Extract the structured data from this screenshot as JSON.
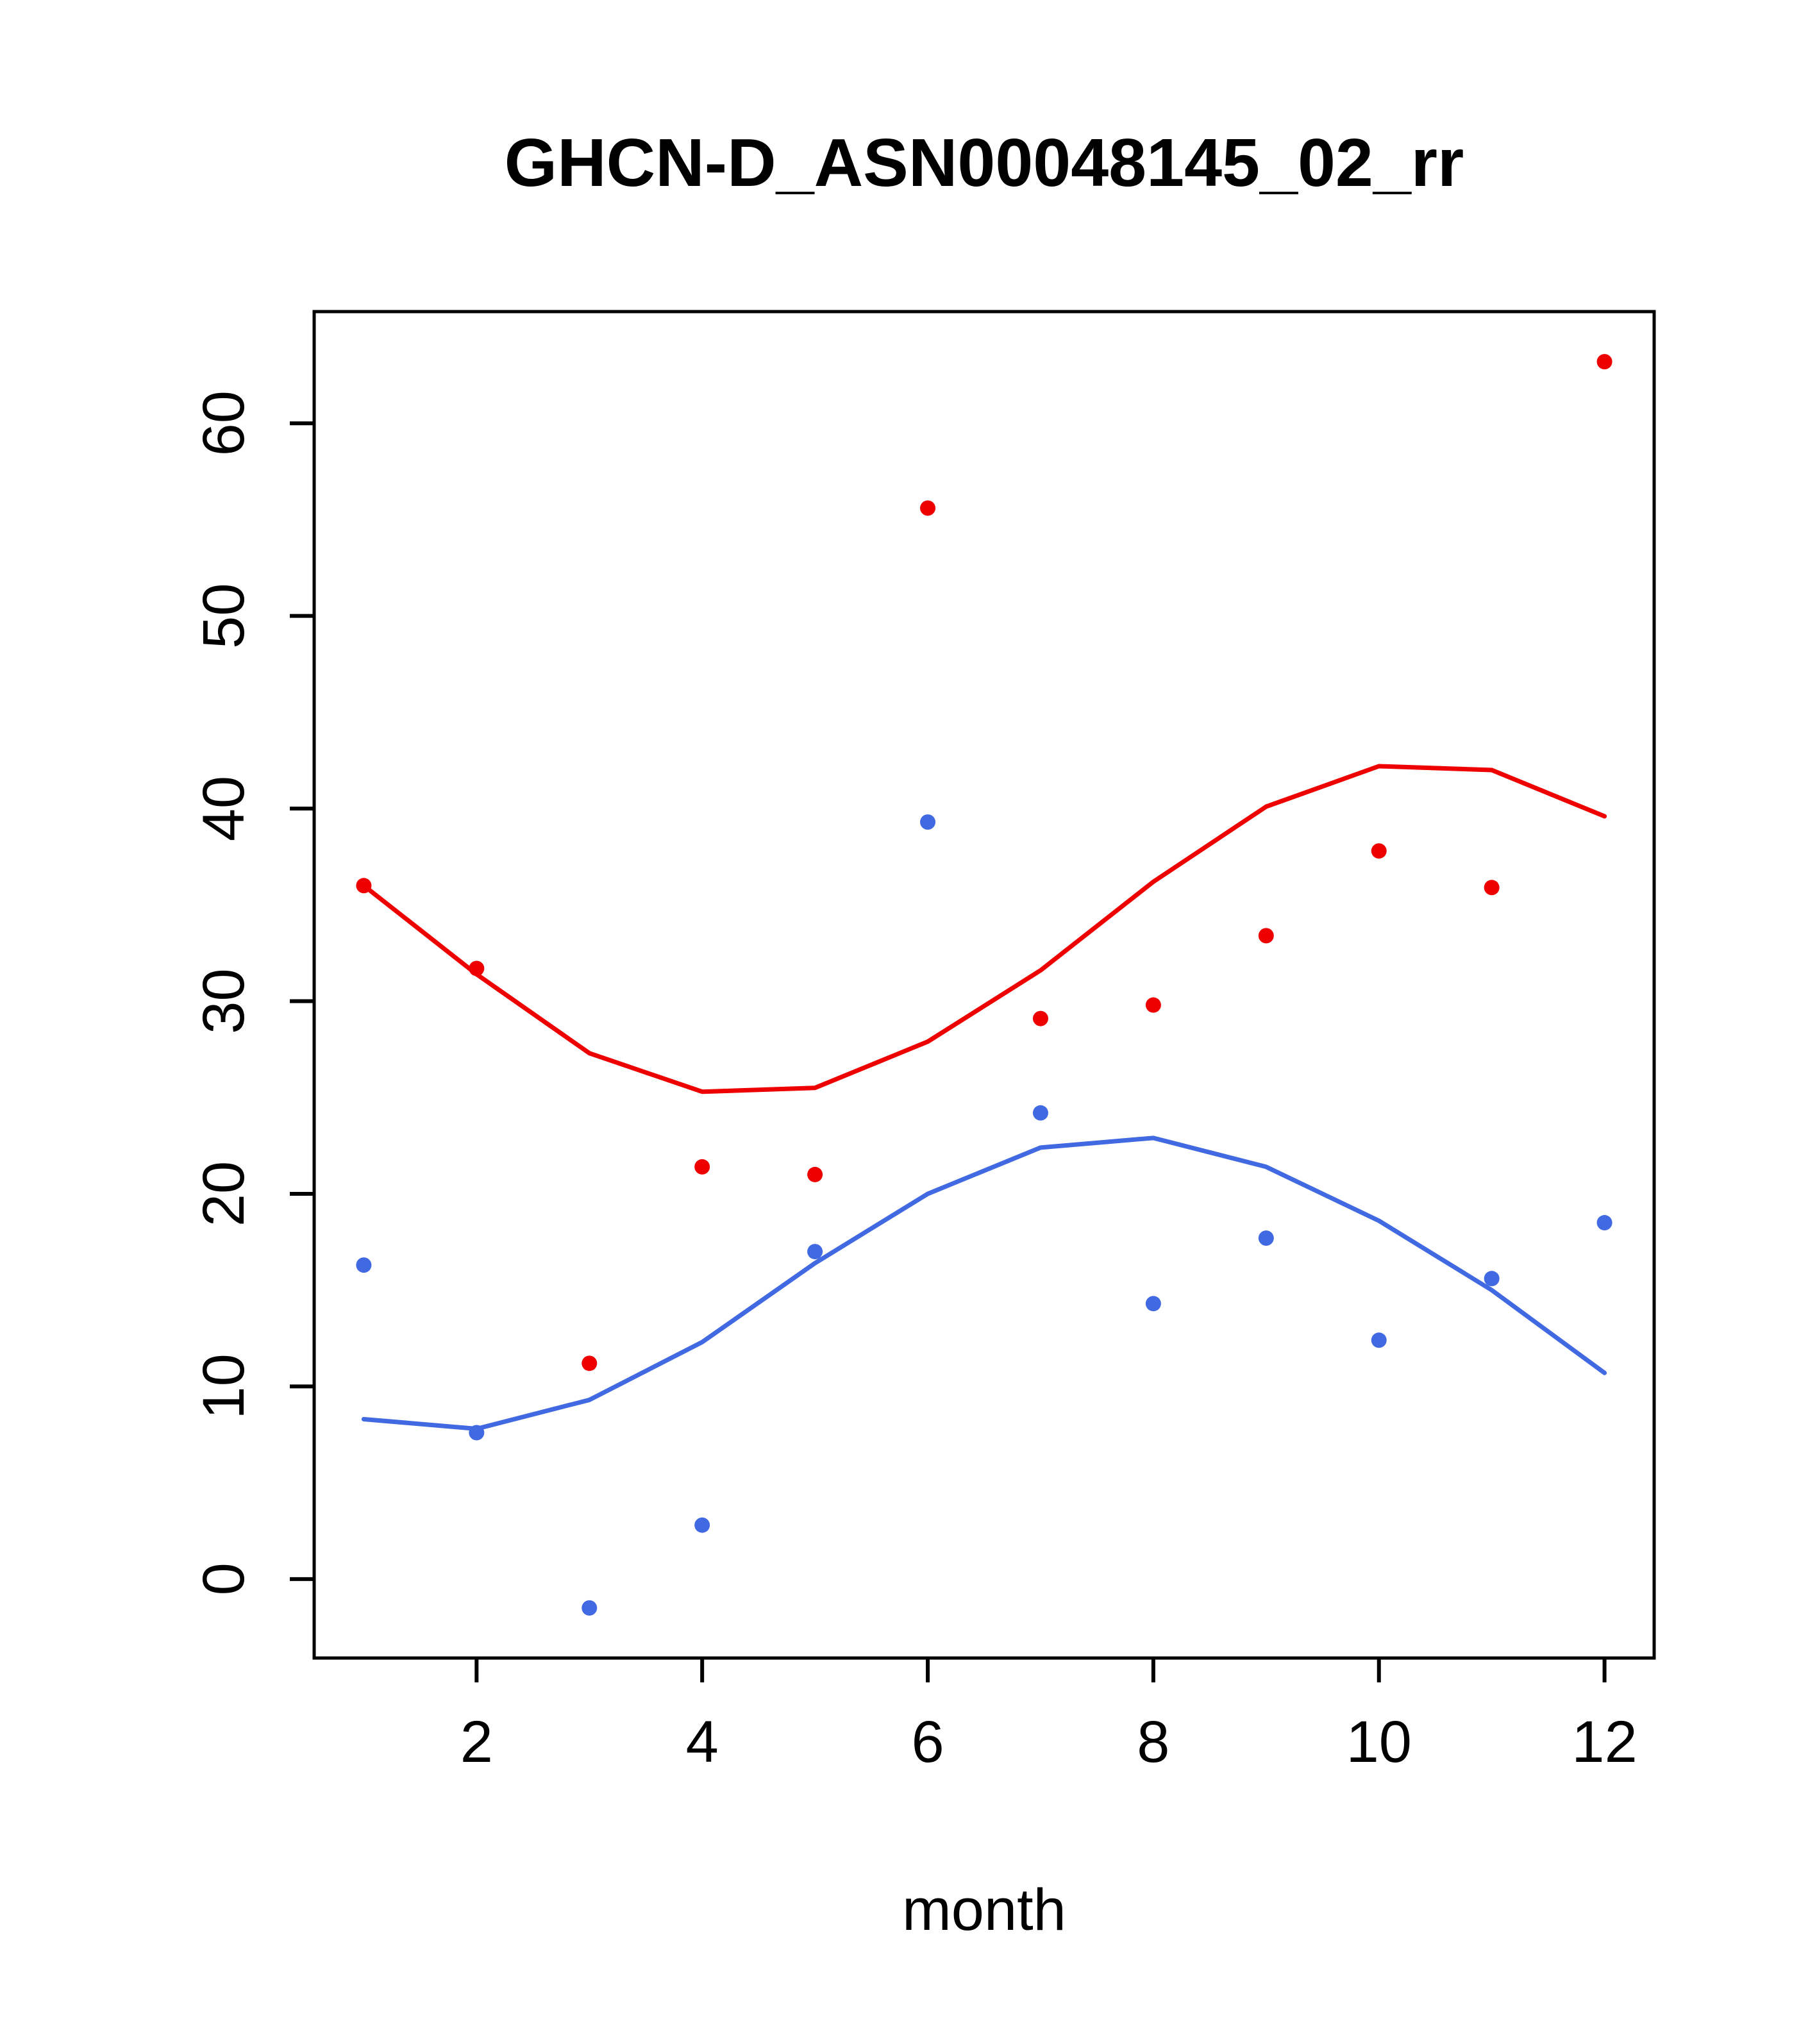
{
  "chart_data": {
    "type": "scatter",
    "title": "GHCN-D_ASN00048145_02_rr",
    "xlabel": "month",
    "ylabel": "",
    "xlim": [
      0.56,
      12.44
    ],
    "ylim": [
      -4.1,
      65.8
    ],
    "x_ticks": [
      2,
      4,
      6,
      8,
      10,
      12
    ],
    "y_ticks": [
      0,
      10,
      20,
      30,
      40,
      50,
      60
    ],
    "grid": false,
    "legend": "none",
    "x": [
      1,
      2,
      3,
      4,
      5,
      6,
      7,
      8,
      9,
      10,
      11,
      12
    ],
    "colors": {
      "red": "#EE0000",
      "blue": "#4169E1"
    },
    "series": [
      {
        "name": "red-scatter",
        "type": "points",
        "color": "#EE0000",
        "values": [
          36.0,
          31.7,
          11.2,
          21.4,
          21.0,
          55.6,
          29.1,
          29.8,
          33.4,
          37.8,
          35.9,
          63.2
        ]
      },
      {
        "name": "blue-scatter",
        "type": "points",
        "color": "#4169E1",
        "values": [
          16.3,
          7.6,
          -1.5,
          2.8,
          17.0,
          39.3,
          24.2,
          14.3,
          17.7,
          12.4,
          15.6,
          18.5
        ]
      },
      {
        "name": "red-smooth-line",
        "type": "line",
        "color": "#EE0000",
        "values": [
          36.0,
          31.4,
          27.3,
          25.3,
          25.5,
          27.9,
          31.6,
          36.2,
          40.1,
          42.2,
          42.0,
          39.6
        ]
      },
      {
        "name": "blue-smooth-line",
        "type": "line",
        "color": "#4169E1",
        "values": [
          8.3,
          7.8,
          9.3,
          12.3,
          16.4,
          20.0,
          22.4,
          22.9,
          21.4,
          18.6,
          15.0,
          10.7
        ]
      }
    ]
  }
}
